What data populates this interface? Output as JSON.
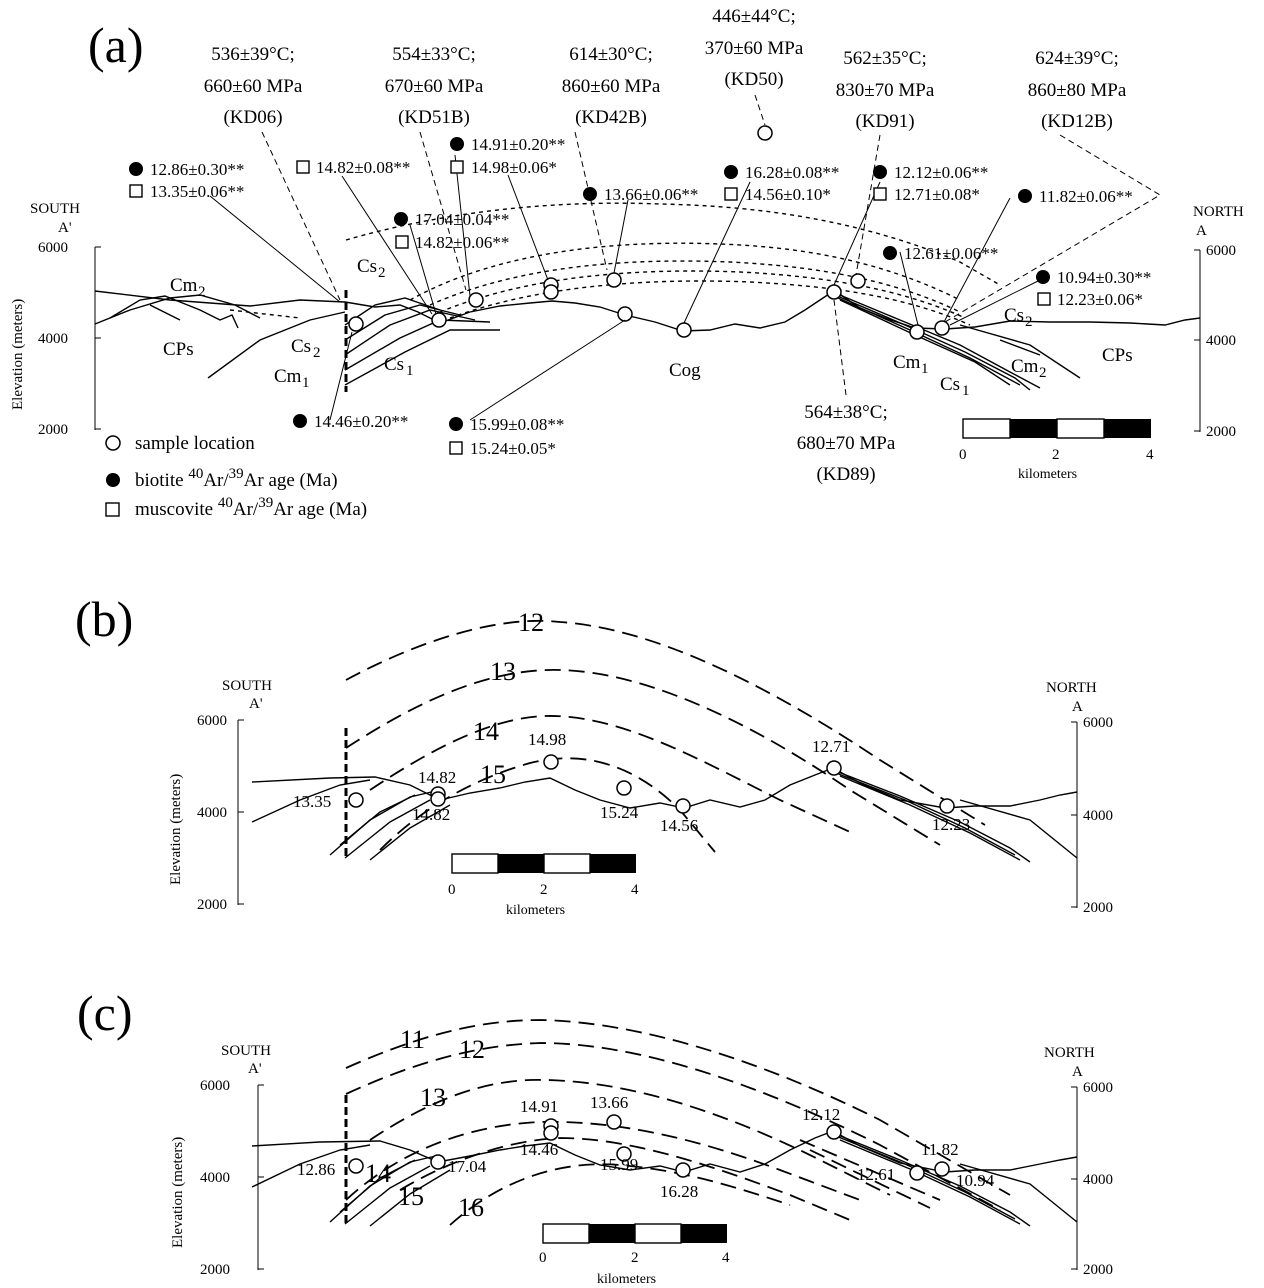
{
  "panel_a": {
    "label": "(a)",
    "south": "SOUTH",
    "south_sub": "A'",
    "north": "NORTH",
    "north_sub": "A",
    "ylabel": "Elevation (meters)",
    "yticks": [
      "6000",
      "4000",
      "2000"
    ],
    "pt": [
      {
        "t": "536±39°C;",
        "p": "660±60 MPa",
        "id": "(KD06)"
      },
      {
        "t": "554±33°C;",
        "p": "670±60 MPa",
        "id": "(KD51B)"
      },
      {
        "t": "614±30°C;",
        "p": "860±60 MPa",
        "id": "(KD42B)"
      },
      {
        "t": "446±44°C;",
        "p": "370±60 MPa",
        "id": "(KD50)"
      },
      {
        "t": "562±35°C;",
        "p": "830±70 MPa",
        "id": "(KD91)"
      },
      {
        "t": "624±39°C;",
        "p": "860±80 MPa",
        "id": "(KD12B)"
      },
      {
        "t": "564±38°C;",
        "p": "680±70 MPa",
        "id": "(KD89)"
      }
    ],
    "ages": {
      "b1": "12.86±0.30**",
      "m1": "13.35±0.06**",
      "m2": "14.82±0.08**",
      "b3": "14.91±0.20**",
      "m3": "14.98±0.06*",
      "b4": "17.04±0.04**",
      "m4": "14.82±0.06**",
      "b5": "13.66±0.06**",
      "b6": "16.28±0.08**",
      "m6": "14.56±0.10*",
      "b7": "12.12±0.06**",
      "m7": "12.71±0.08*",
      "b8": "11.82±0.06**",
      "b9": "12.61±0.06**",
      "b10": "10.94±0.30**",
      "m10": "12.23±0.06*",
      "b11": "14.46±0.20**",
      "b12": "15.99±0.08**",
      "m12": "15.24±0.05*"
    },
    "units": {
      "cm2": "Cm",
      "cm2s": "2",
      "cps": "CPs",
      "cs2": "Cs",
      "cs2s": "2",
      "cs1": "Cs",
      "cs1s": "1",
      "cm1": "Cm",
      "cm1s": "1",
      "cog": "Cog",
      "cps_r": "CPs",
      "cs2r": "Cs",
      "cs2rs": "2",
      "cm1r": "Cm",
      "cm1rs": "1",
      "cm2r": "Cm",
      "cm2rs": "2",
      "cs1r": "Cs",
      "cs1rs": "1"
    },
    "legend": {
      "sample": "sample location",
      "biotite_pre": "biotite ",
      "sup40": "40",
      "ar": "Ar/",
      "sup39": "39",
      "biotite_post": "Ar age (Ma)",
      "muscovite_pre": "muscovite "
    },
    "scale": {
      "t0": "0",
      "t2": "2",
      "t4": "4",
      "label": "kilometers"
    }
  },
  "panel_b": {
    "label": "(b)",
    "south": "SOUTH",
    "south_sub": "A'",
    "north": "NORTH",
    "north_sub": "A",
    "ylabel": "Elevation (meters)",
    "yticks": [
      "6000",
      "4000",
      "2000"
    ],
    "isograds": [
      "12",
      "13",
      "14",
      "15"
    ],
    "ages": [
      "13.35",
      "14.82",
      "14.82",
      "14.98",
      "15.24",
      "14.56",
      "12.71",
      "12.23"
    ],
    "scale": {
      "t0": "0",
      "t2": "2",
      "t4": "4",
      "label": "kilometers"
    }
  },
  "panel_c": {
    "label": "(c)",
    "south": "SOUTH",
    "south_sub": "A'",
    "north": "NORTH",
    "north_sub": "A",
    "ylabel": "Elevation (meters)",
    "yticks": [
      "6000",
      "4000",
      "2000"
    ],
    "isograds": [
      "11",
      "12",
      "13",
      "14",
      "15",
      "16"
    ],
    "ages": [
      "14.91",
      "13.66",
      "12.86",
      "17.04",
      "14.46",
      "15.99",
      "16.28",
      "12.12",
      "11.82",
      "12.61",
      "10.94"
    ],
    "scale": {
      "t0": "0",
      "t2": "2",
      "t4": "4",
      "label": "kilometers"
    }
  }
}
